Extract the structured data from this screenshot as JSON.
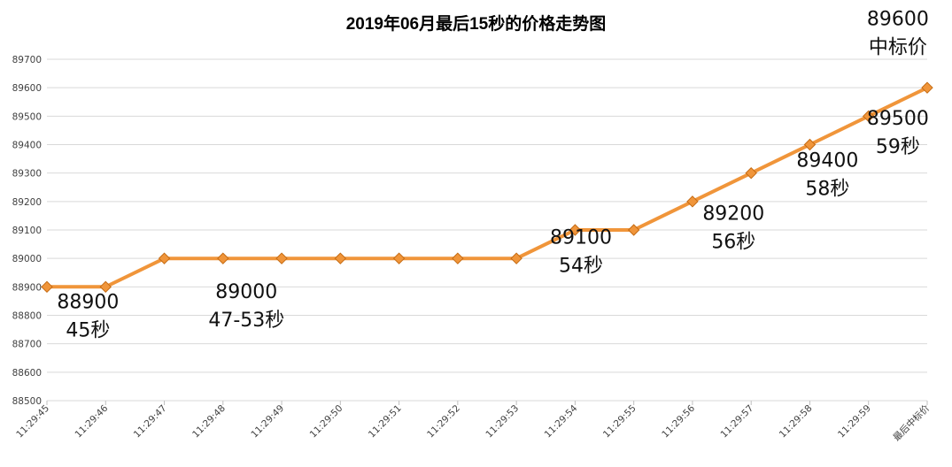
{
  "chart_data": {
    "type": "line",
    "title": "2019年06月最后15秒的价格走势图",
    "categories": [
      "11:29:45",
      "11:29:46",
      "11:29:47",
      "11:29:48",
      "11:29:49",
      "11:29:50",
      "11:29:51",
      "11:29:52",
      "11:29:53",
      "11:29:54",
      "11:29:55",
      "11:29:56",
      "11:29:57",
      "11:29:58",
      "11:29:59",
      "最后中标价"
    ],
    "series": [
      {
        "values": [
          88900,
          88900,
          89000,
          89000,
          89000,
          89000,
          89000,
          89000,
          89000,
          89100,
          89100,
          89200,
          89300,
          89400,
          89500,
          89600
        ]
      }
    ],
    "ylim": [
      88500,
      89700
    ],
    "yticks": [
      88500,
      88600,
      88700,
      88800,
      88900,
      89000,
      89100,
      89200,
      89300,
      89400,
      89500,
      89600,
      89700
    ],
    "grid": true,
    "line_color": "#F0953A",
    "marker_color": "#F0953A",
    "annotations": [
      {
        "category_index": 0.7,
        "value": 88825,
        "lines": [
          "88900",
          "45秒"
        ]
      },
      {
        "category_index": 3.4,
        "value": 88860,
        "lines": [
          "89000",
          "47-53秒"
        ]
      },
      {
        "category_index": 9.1,
        "value": 89052,
        "lines": [
          "89100",
          "54秒"
        ]
      },
      {
        "category_index": 11.7,
        "value": 89135,
        "lines": [
          "89200",
          "56秒"
        ]
      },
      {
        "category_index": 13.3,
        "value": 89323,
        "lines": [
          "89400",
          "58秒"
        ]
      },
      {
        "category_index": 14.5,
        "value": 89470,
        "lines": [
          "89500",
          "59秒"
        ]
      },
      {
        "category_index": 14.5,
        "value": 89820,
        "lines": [
          "89600",
          "中标价"
        ]
      }
    ]
  }
}
